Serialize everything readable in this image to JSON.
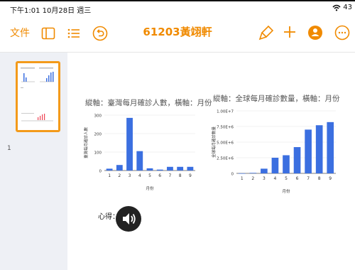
{
  "status": {
    "time": "下午1:01  10月28日 週三",
    "battery": "43"
  },
  "toolbar": {
    "file_label": "文件",
    "title": "61203黃翊軒"
  },
  "sidebar": {
    "slide_number": "1"
  },
  "slide": {
    "note_label": "心得："
  },
  "colors": {
    "accent": "#f08a00",
    "bar": "#3b6fe0"
  },
  "chart_data": [
    {
      "type": "bar",
      "title": "縱軸：臺灣每月確診人數，橫軸：月份",
      "xlabel": "月份",
      "ylabel": "臺灣每月確診人數",
      "categories": [
        "1",
        "2",
        "3",
        "4",
        "5",
        "6",
        "7",
        "8",
        "9"
      ],
      "values": [
        10,
        30,
        285,
        105,
        12,
        5,
        20,
        20,
        20
      ],
      "ylim": [
        0,
        300
      ],
      "yticks": [
        "0",
        "100",
        "200",
        "300"
      ]
    },
    {
      "type": "bar",
      "title": "縱軸：全球每月確診數量，橫軸：月份",
      "xlabel": "月份",
      "ylabel": "全球每月確診數量",
      "categories": [
        "1",
        "2",
        "3",
        "4",
        "5",
        "6",
        "7",
        "8",
        "9"
      ],
      "values": [
        10000,
        80000,
        750000,
        2500000,
        2900000,
        4200000,
        7000000,
        7700000,
        8200000
      ],
      "ylim": [
        0,
        10000000
      ],
      "yticks": [
        "0",
        "2.50E+6",
        "5.00E+6",
        "7.50E+6",
        "1.00E+7"
      ]
    }
  ]
}
